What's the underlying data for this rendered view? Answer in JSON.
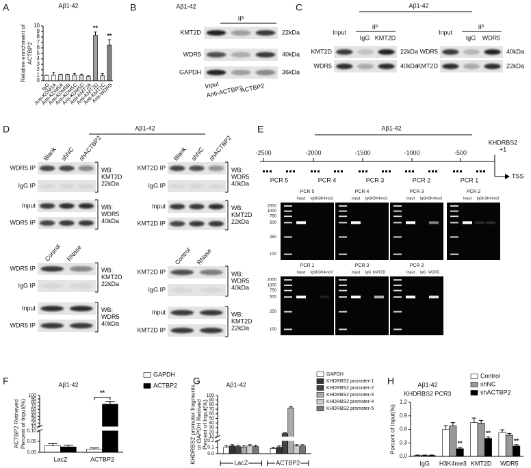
{
  "panel_letters": [
    "A",
    "B",
    "C",
    "D",
    "E",
    "F",
    "G",
    "H"
  ],
  "chart_data": [
    {
      "type": "bar",
      "title": "Aβ1-42",
      "y_label": [
        "Relative enrichment of",
        "ACTBP2"
      ],
      "categories": [
        "IgG",
        "Anti-KDM1A",
        "Anti-KDM5A",
        "Anti-KDM5B",
        "Anti-KDM5C",
        "Anti-KDM5D",
        "Anti-KMT2A",
        "Anti-KMT2D",
        "Anti-KMT2C",
        "Anti-WDR5"
      ],
      "values": [
        1,
        1,
        1.1,
        1.1,
        1,
        1,
        0.8,
        8.3,
        0.9,
        6.5
      ],
      "errors": [
        0,
        0.5,
        0.1,
        0.1,
        0.3,
        0.2,
        0.1,
        0.6,
        0.4,
        1.0
      ],
      "colors": [
        "#ffffff",
        "#ffffff",
        "#e0e0e0",
        "#d0d0d0",
        "#e0e0e0",
        "#d0d0d0",
        "#e0e0e0",
        "#a0a0a0",
        "#e0e0e0",
        "#808080"
      ],
      "significance": [
        null,
        null,
        null,
        null,
        null,
        null,
        null,
        "**",
        null,
        "**"
      ],
      "ylim": [
        0,
        10
      ],
      "yticks": [
        0,
        1,
        2,
        3,
        4,
        5,
        6,
        7,
        8,
        9,
        10
      ]
    },
    {
      "type": "bar",
      "title": "Aβ1-42",
      "y_label": [
        "ACTBP2 Retrieved",
        "Percent of Input(%)"
      ],
      "categories": [
        "LacZ",
        "ACTBP2"
      ],
      "series": [
        {
          "name": "GAPDH",
          "color": "#ffffff",
          "values": [
            0.03,
            0.015
          ],
          "errors": [
            0.01,
            0.005
          ]
        },
        {
          "name": "ACTBP2",
          "color": "#000000",
          "values": [
            0.025,
            75
          ],
          "errors": [
            0.008,
            8
          ]
        }
      ],
      "significance": [
        null,
        "**"
      ],
      "ylim": [
        0,
        100
      ],
      "axis_break": [
        0.1,
        10
      ],
      "yticks": [
        {
          "value": 0,
          "label": "0.00"
        },
        {
          "value": 0.05,
          "label": "0.05"
        },
        {
          "value": 0.1,
          "label": "0.10"
        },
        10,
        20,
        30,
        40,
        50,
        60,
        70,
        80,
        90,
        100
      ]
    },
    {
      "type": "bar",
      "title": "Aβ1-42",
      "y_label": [
        "KHDRBS2 promoter fragments",
        "or GAPDH Retrived",
        "Percent of Input(%)"
      ],
      "categories": [
        "LacZ",
        "ACTBP2"
      ],
      "series": [
        {
          "name": "GAPDH",
          "color": "#ffffff",
          "values": [
            0.1,
            0.08
          ],
          "errors": [
            0.02,
            0.02
          ]
        },
        {
          "name": "KHDRBS2 promoter-1",
          "color": "#333333",
          "values": [
            0.12,
            0.1
          ],
          "errors": [
            0.02,
            0.02
          ]
        },
        {
          "name": "KHDRBS2 promoter-2",
          "color": "#444444",
          "values": [
            0.11,
            17
          ],
          "errors": [
            0.02,
            2
          ]
        },
        {
          "name": "KHDRBS2 promoter-3",
          "color": "#aaaaaa",
          "values": [
            0.1,
            73
          ],
          "errors": [
            0.02,
            3
          ]
        },
        {
          "name": "KHDRBS2 promoter-4",
          "color": "#cccccc",
          "values": [
            0.12,
            0.12
          ],
          "errors": [
            0.02,
            0.02
          ]
        },
        {
          "name": "KHDRBS2 promoter-5",
          "color": "#777777",
          "values": [
            0.11,
            0.12
          ],
          "errors": [
            0.02,
            0.02
          ]
        }
      ],
      "ylim": [
        0,
        100
      ],
      "axis_break": [
        0.2,
        10
      ],
      "yticks": [
        {
          "value": 0,
          "label": "0.0"
        },
        0.1,
        0.2,
        10,
        20,
        30,
        40,
        50,
        60,
        70,
        80,
        90,
        100
      ]
    },
    {
      "type": "bar",
      "title": "Aβ1-42",
      "subtitle": "KHDRBS2 PCR3",
      "y_label": [
        "Percent of Input(%)"
      ],
      "categories": [
        "IgG",
        "H3K4me3",
        "KMT2D",
        "WDR5"
      ],
      "series": [
        {
          "name": "Control",
          "color": "#ffffff",
          "values": [
            0.02,
            0.6,
            0.75,
            0.53
          ],
          "errors": [
            0.01,
            0.08,
            0.1,
            0.06
          ]
        },
        {
          "name": "shNC",
          "color": "#999999",
          "values": [
            0.02,
            0.68,
            0.74,
            0.47
          ],
          "errors": [
            0.01,
            0.07,
            0.06,
            0.04
          ]
        },
        {
          "name": "shACTBP2",
          "color": "#000000",
          "values": [
            0.02,
            0.17,
            0.4,
            0.23
          ],
          "errors": [
            0.01,
            0.03,
            0.03,
            0.03
          ],
          "significance": [
            null,
            "**",
            "**",
            "**"
          ]
        }
      ],
      "ylim": [
        0,
        1.2
      ],
      "yticks": [
        {
          "value": 0,
          "label": "0.0"
        },
        0.3,
        0.6,
        0.9,
        1.2
      ]
    }
  ],
  "blot_b": {
    "title": "Aβ1-42",
    "ip": "IP",
    "rows": [
      "KMT2D",
      "WDR5",
      "GAPDH"
    ],
    "sizes": [
      "22kDa",
      "40kDa",
      "36kDa"
    ],
    "lanes": [
      "Input",
      "Anti-ACTBP2",
      "ACTBP2"
    ]
  },
  "blot_c": {
    "title": "Aβ1-42",
    "left": {
      "input": "Input",
      "ip": "IP",
      "lanes": [
        "IgG",
        "KMT2D"
      ],
      "rows": [
        "KMT2D",
        "WDR5"
      ],
      "sizes": [
        "22kDa",
        "40kDa"
      ]
    },
    "right": {
      "input": "Input",
      "ip": "IP",
      "lanes": [
        "IgG",
        "WDR5"
      ],
      "rows": [
        "WDR5",
        "KMT2D"
      ],
      "sizes": [
        "40kDa",
        "22kDa"
      ]
    }
  },
  "blot_d": {
    "title": "Aβ1-42",
    "blocks": [
      {
        "lanes": [
          "Blank",
          "shNC",
          "shACTBP2"
        ],
        "rows": [
          "WDR5 IP",
          "IgG IP",
          "Input",
          "WDR5 IP"
        ],
        "wb": [
          [
            "WB:",
            "KMT2D",
            "22kDa"
          ],
          [
            "WB:",
            "WDR5",
            "40kDa"
          ]
        ]
      },
      {
        "lanes": [
          "Blank",
          "shNC",
          "shACTBP2"
        ],
        "rows": [
          "KMT2D IP",
          "IgG IP",
          "Input",
          "KMT2D IP"
        ],
        "wb": [
          [
            "WB:",
            "WDR5",
            "40kDa"
          ],
          [
            "WB:",
            "KMT2D",
            "22kDa"
          ]
        ]
      },
      {
        "lanes": [
          "Control",
          "RNase"
        ],
        "rows": [
          "WDR5 IP",
          "IgG IP",
          "Input",
          "WDR5 IP"
        ],
        "wb": [
          [
            "WB:",
            "KMT2D",
            "22kDa"
          ],
          [
            "WB:",
            "WDR5",
            "40kDa"
          ]
        ]
      },
      {
        "lanes": [
          "Control",
          "RNase"
        ],
        "rows": [
          "KMT2D IP",
          "IgG IP",
          "Input",
          "KMT2D IP"
        ],
        "wb": [
          [
            "WB:",
            "WDR5",
            "40kDa"
          ],
          [
            "WB:",
            "KMT2D",
            "22kDa"
          ]
        ]
      }
    ]
  },
  "gel_e": {
    "title": "Aβ1-42",
    "map": {
      "positions": [
        "-2500",
        "-2000",
        "-1500",
        "-1000",
        "-500"
      ],
      "gene": [
        "KHDRBS2",
        "+1"
      ],
      "tss": "TSS",
      "fragments": [
        "PCR 5",
        "PCR 4",
        "PCR 3",
        "PCR 2",
        "PCR 1"
      ]
    },
    "ladder": [
      "2000",
      "1000",
      "750",
      "500",
      "250",
      "100"
    ],
    "gels": [
      {
        "title": "PCR 5",
        "lanes": [
          "Input",
          "IgG",
          "H3K4me3"
        ]
      },
      {
        "title": "PCR 4",
        "lanes": [
          "Input",
          "IgG",
          "H3K4me3"
        ]
      },
      {
        "title": "PCR 3",
        "lanes": [
          "Input",
          "IgG",
          "H3K4me3"
        ]
      },
      {
        "title": "PCR 2",
        "lanes": [
          "Input",
          "IgG",
          "H3K4me3"
        ]
      },
      {
        "title": "PCR 1",
        "lanes": [
          "Input",
          "IgG",
          "H3K4me3"
        ]
      },
      {
        "title": "PCR 3",
        "lanes": [
          "Input",
          "IgG",
          "KMT2D"
        ]
      },
      {
        "title": "PCR 3",
        "lanes": [
          "Input",
          "IgG",
          "WDR5"
        ]
      }
    ]
  }
}
